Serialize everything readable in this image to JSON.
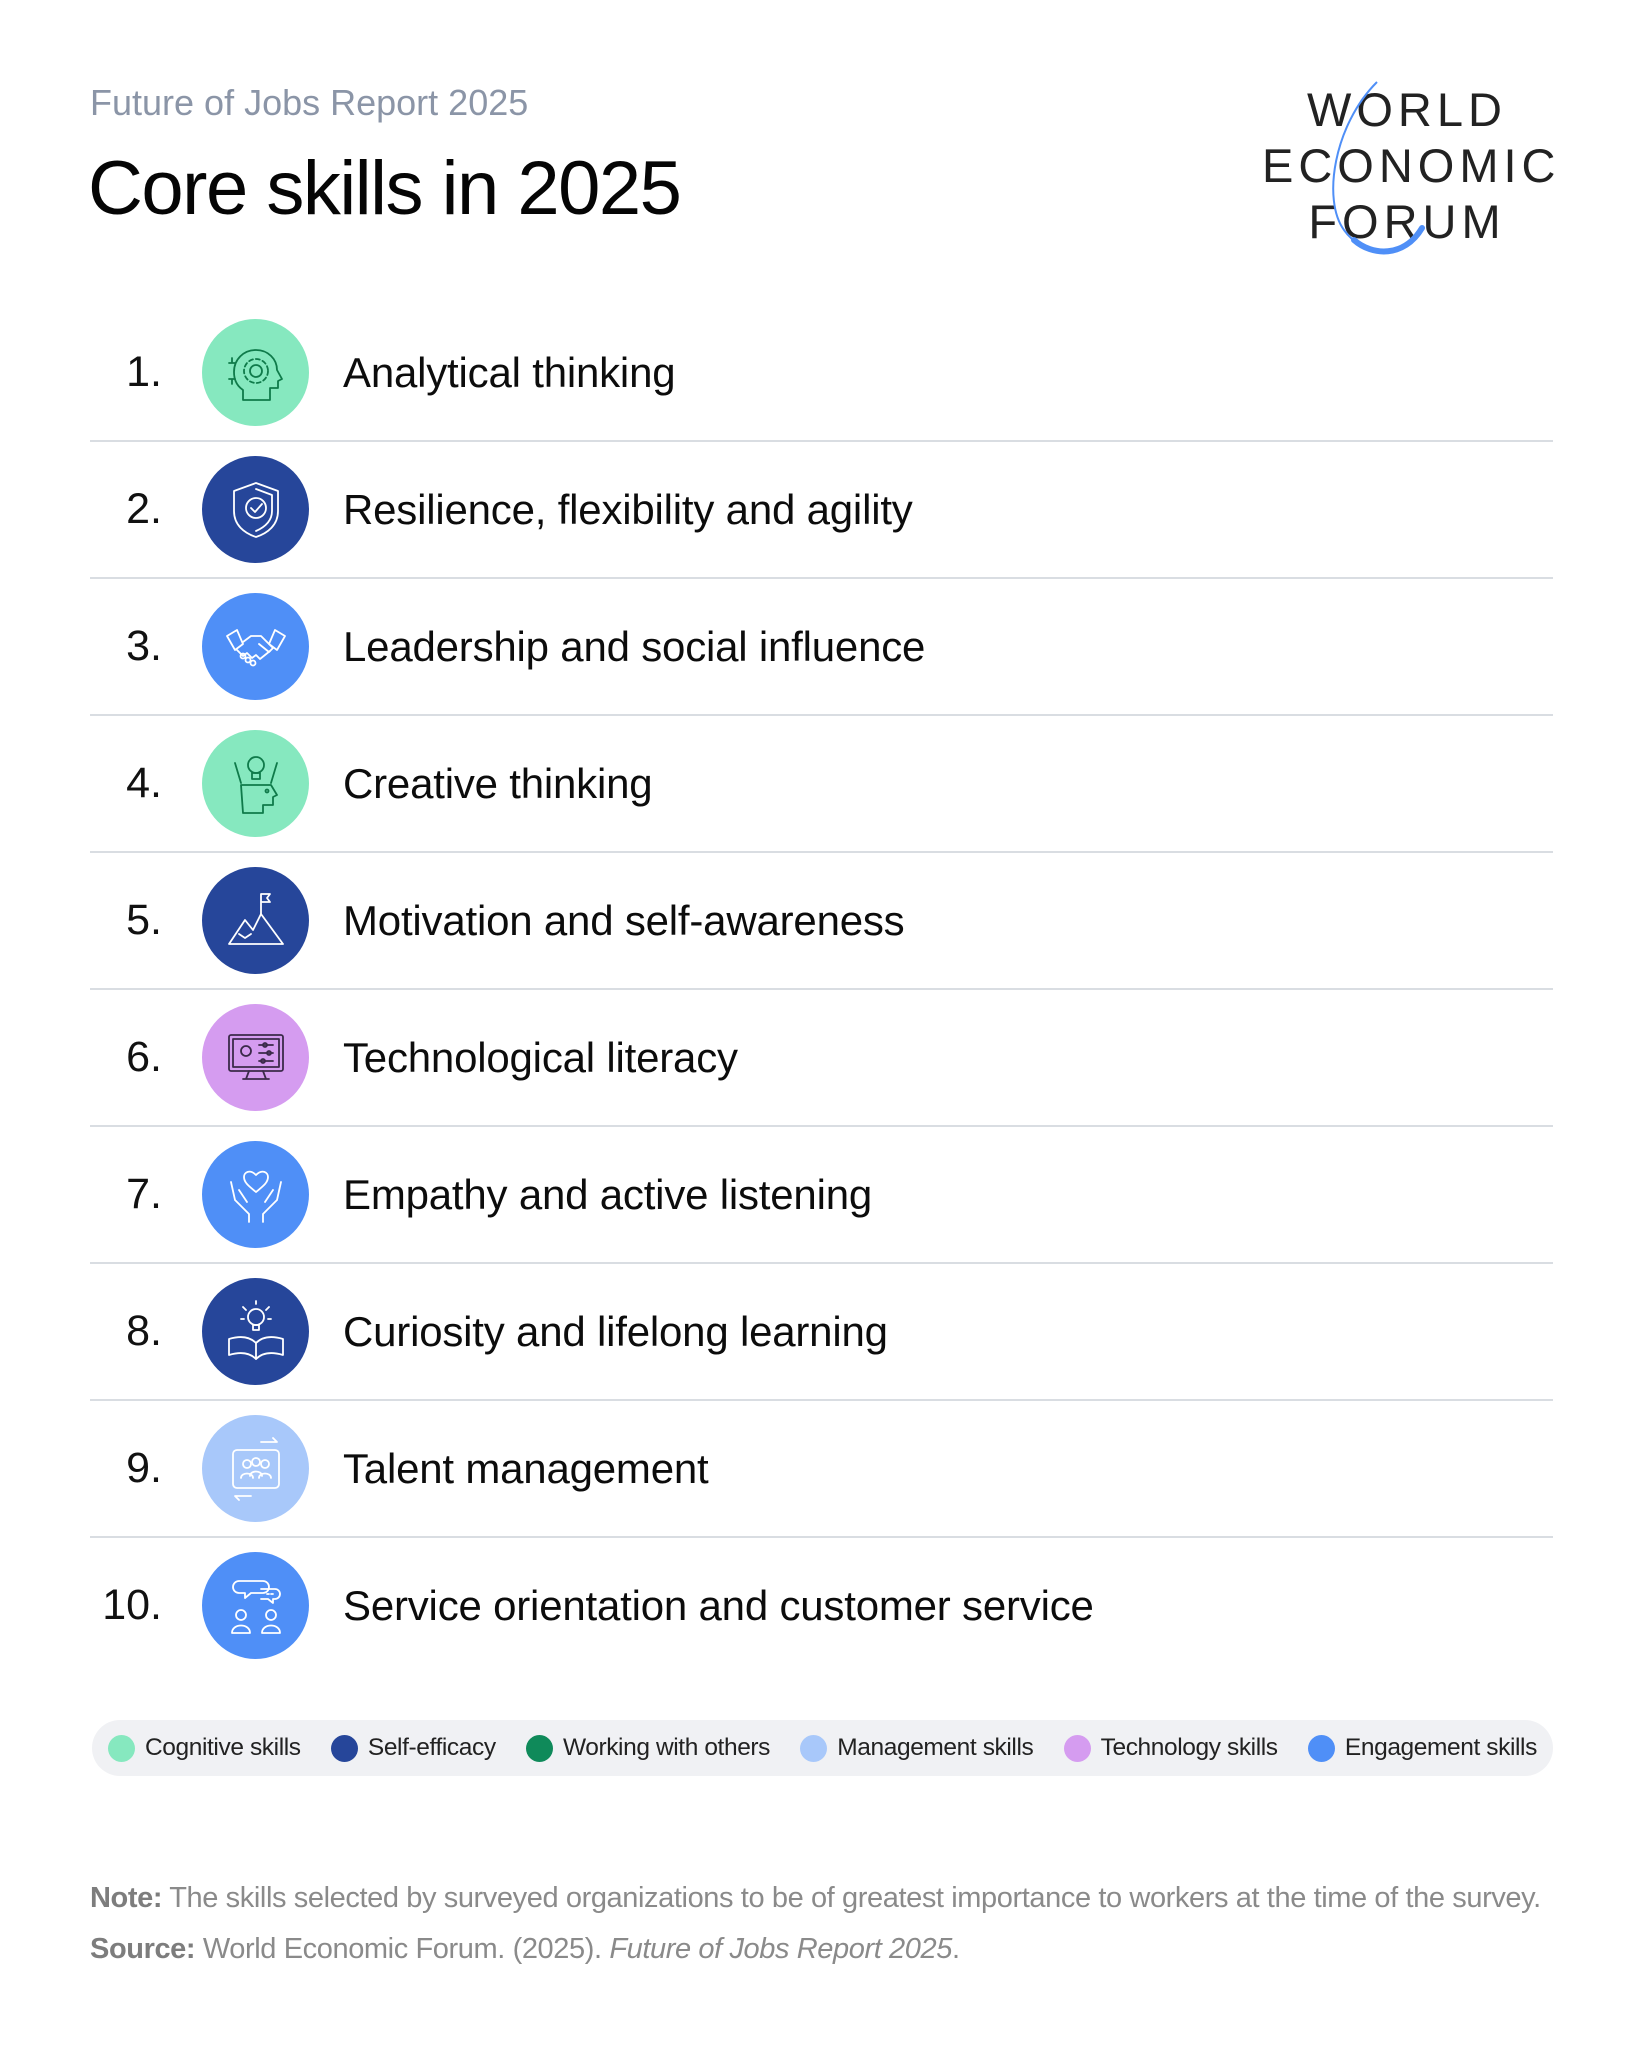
{
  "header": {
    "subtitle": "Future of Jobs Report 2025",
    "title": "Core skills in 2025"
  },
  "logo": {
    "lines": [
      "WORLD",
      "ECONOMIC",
      "FORUM"
    ],
    "accent": "#4f8ff7"
  },
  "skills": [
    {
      "rank": "1.",
      "label": "Analytical thinking",
      "category": "cognitive",
      "icon": "head-gear-icon"
    },
    {
      "rank": "2.",
      "label": "Resilience, flexibility and agility",
      "category": "self-efficacy",
      "icon": "shield-check-icon"
    },
    {
      "rank": "3.",
      "label": "Leadership and social influence",
      "category": "engagement",
      "icon": "handshake-icon"
    },
    {
      "rank": "4.",
      "label": "Creative thinking",
      "category": "cognitive",
      "icon": "head-lightbulb-icon"
    },
    {
      "rank": "5.",
      "label": "Motivation and self-awareness",
      "category": "self-efficacy",
      "icon": "mountain-flag-icon"
    },
    {
      "rank": "6.",
      "label": "Technological literacy",
      "category": "technology",
      "icon": "monitor-settings-icon"
    },
    {
      "rank": "7.",
      "label": "Empathy and active listening",
      "category": "engagement",
      "icon": "hands-heart-icon"
    },
    {
      "rank": "8.",
      "label": "Curiosity and lifelong learning",
      "category": "self-efficacy",
      "icon": "book-lightbulb-icon"
    },
    {
      "rank": "9.",
      "label": "Talent management",
      "category": "management",
      "icon": "team-rotate-icon"
    },
    {
      "rank": "10.",
      "label": "Service orientation and customer service",
      "category": "engagement",
      "icon": "people-chat-icon"
    }
  ],
  "categories": {
    "cognitive": {
      "label": "Cognitive skills",
      "color": "#86e8bf",
      "stroke": "#0f7a4a"
    },
    "self-efficacy": {
      "label": "Self-efficacy",
      "color": "#26469a",
      "stroke": "#ffffff"
    },
    "working": {
      "label": "Working with others",
      "color": "#0f8a5a",
      "stroke": "#ffffff"
    },
    "management": {
      "label": "Management skills",
      "color": "#a8c8fa",
      "stroke": "#ffffff"
    },
    "technology": {
      "label": "Technology skills",
      "color": "#d59cf0",
      "stroke": "#3b2a4a"
    },
    "engagement": {
      "label": "Engagement skills",
      "color": "#4f8ff7",
      "stroke": "#ffffff"
    }
  },
  "legend_order": [
    "cognitive",
    "self-efficacy",
    "working",
    "management",
    "technology",
    "engagement"
  ],
  "footer": {
    "note_label": "Note:",
    "note_text": " The skills selected by surveyed organizations to be of greatest importance to workers at the time of the survey.",
    "source_label": "Source:",
    "source_text": " World Economic Forum. (2025). ",
    "source_title": "Future of Jobs Report 2025",
    "source_end": "."
  }
}
